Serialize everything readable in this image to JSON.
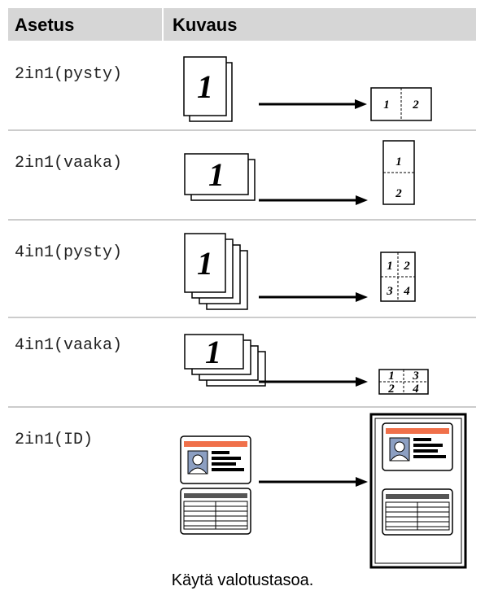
{
  "table": {
    "header": [
      "Asetus",
      "Kuvaus"
    ],
    "rows": [
      {
        "setting": "2in1(pysty)",
        "source_label": "1",
        "result_labels": [
          "1",
          "2"
        ]
      },
      {
        "setting": "2in1(vaaka)",
        "source_label": "1",
        "result_labels": [
          "1",
          "2"
        ]
      },
      {
        "setting": "4in1(pysty)",
        "source_label": "1",
        "result_labels": [
          "1",
          "2",
          "3",
          "4"
        ]
      },
      {
        "setting": "4in1(vaaka)",
        "source_label": "1",
        "result_labels": [
          "1",
          "3",
          "2",
          "4"
        ]
      },
      {
        "setting": "2in1(ID)",
        "caption": "Käytä valotustasoa."
      }
    ]
  }
}
